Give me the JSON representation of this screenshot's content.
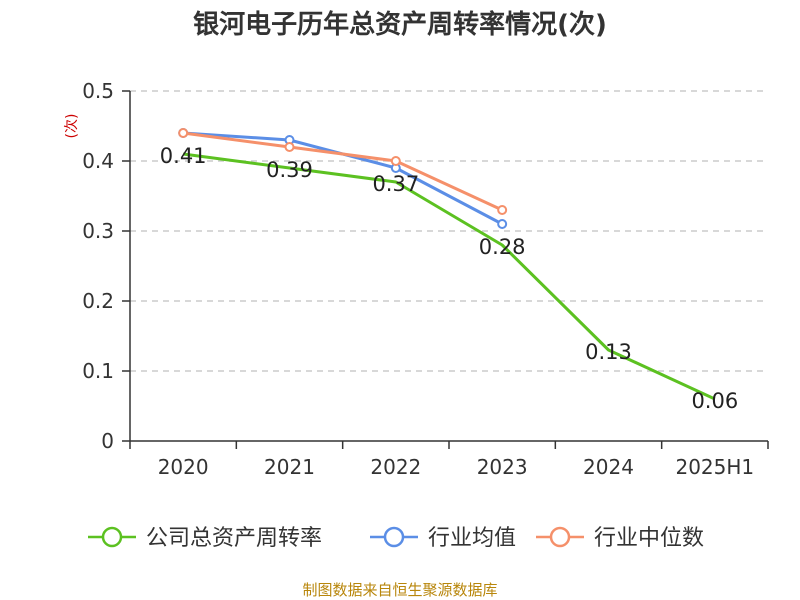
{
  "chart_data": {
    "type": "line",
    "title": "银河电子历年总资产周转率情况(次)",
    "ylabel": "(次)",
    "xlabel": "",
    "categories": [
      "2020",
      "2021",
      "2022",
      "2023",
      "2024",
      "2025H1"
    ],
    "yticks": [
      "0",
      "0.1",
      "0.2",
      "0.3",
      "0.4",
      "0.5"
    ],
    "ylim": [
      0,
      0.5
    ],
    "grid": true,
    "legend_position": "bottom",
    "series": [
      {
        "name": "公司总资产周转率",
        "color": "#5cc121",
        "values": [
          0.41,
          0.39,
          0.37,
          0.28,
          0.13,
          0.06
        ],
        "labels": [
          "0.41",
          "0.39",
          "0.37",
          "0.28",
          "0.13",
          "0.06"
        ]
      },
      {
        "name": "行业均值",
        "color": "#5b8ee6",
        "values": [
          0.44,
          0.43,
          0.39,
          0.31,
          null,
          null
        ]
      },
      {
        "name": "行业中位数",
        "color": "#f5906a",
        "values": [
          0.44,
          0.42,
          0.4,
          0.33,
          null,
          null
        ]
      }
    ],
    "source": "制图数据来自恒生聚源数据库"
  }
}
